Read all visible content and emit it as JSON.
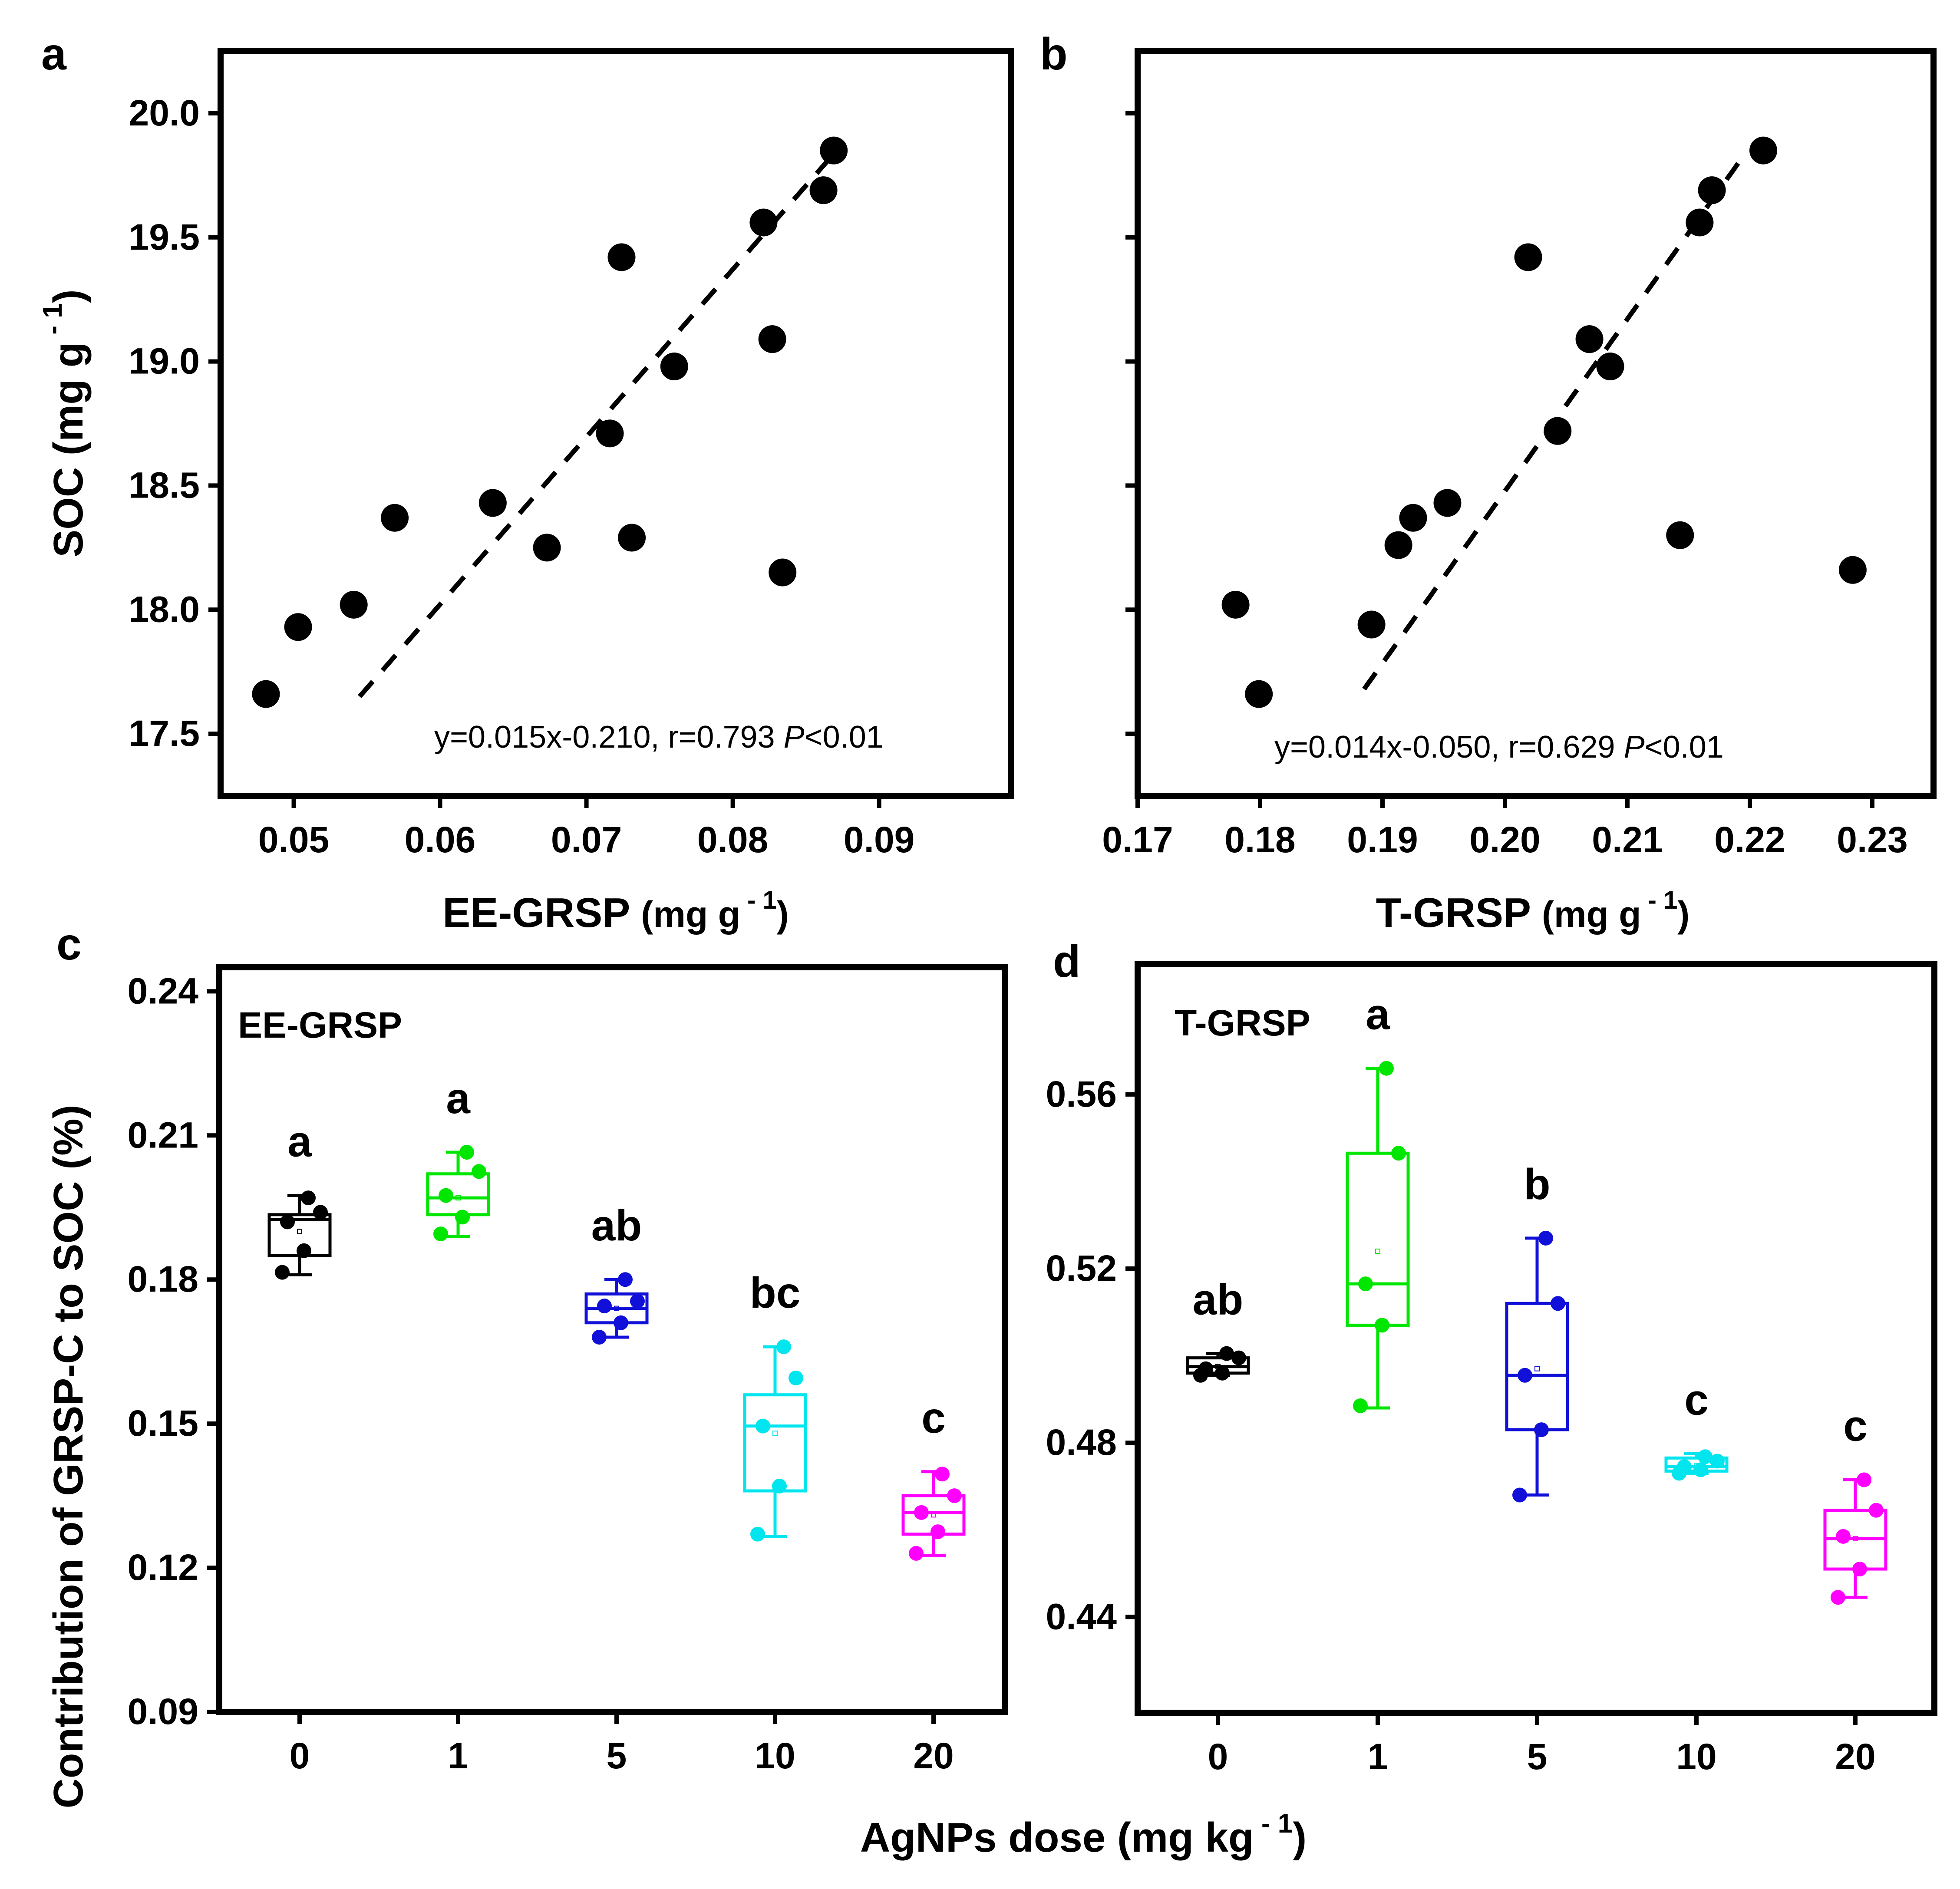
{
  "chart_data": [
    {
      "panel": "a",
      "type": "scatter",
      "xlabel": "EE-GRSP",
      "xlabel_unit": "(mg g",
      "xlabel_sup": " - 1",
      "xlabel_close": ")",
      "ylabel": "SOC (mg g",
      "ylabel_sup": " - 1",
      "ylabel_close": ")",
      "xlim": [
        0.045,
        0.099
      ],
      "ylim": [
        17.25,
        20.25
      ],
      "xticks": [
        0.05,
        0.06,
        0.07,
        0.08,
        0.09
      ],
      "xtick_labels": [
        "0.05",
        "0.06",
        "0.07",
        "0.08",
        "0.09"
      ],
      "yticks": [
        17.5,
        18.0,
        18.5,
        19.0,
        19.5,
        20.0
      ],
      "ytick_labels": [
        "17.5",
        "18.0",
        "18.5",
        "19.0",
        "19.5",
        "20.0"
      ],
      "points": [
        {
          "x": 0.0481,
          "y": 17.66
        },
        {
          "x": 0.0503,
          "y": 17.93
        },
        {
          "x": 0.0541,
          "y": 18.02
        },
        {
          "x": 0.0569,
          "y": 18.37
        },
        {
          "x": 0.0636,
          "y": 18.43
        },
        {
          "x": 0.0673,
          "y": 18.25
        },
        {
          "x": 0.0716,
          "y": 18.71
        },
        {
          "x": 0.0724,
          "y": 19.42
        },
        {
          "x": 0.0731,
          "y": 18.29
        },
        {
          "x": 0.076,
          "y": 18.98
        },
        {
          "x": 0.0821,
          "y": 19.56
        },
        {
          "x": 0.0827,
          "y": 19.09
        },
        {
          "x": 0.0834,
          "y": 18.15
        },
        {
          "x": 0.0862,
          "y": 19.69
        },
        {
          "x": 0.0869,
          "y": 19.85
        }
      ],
      "fit_line": {
        "x": [
          0.0545,
          0.0868
        ],
        "y": [
          17.65,
          19.83
        ]
      },
      "equation": "y=0.015x-0.210, r=0.793 ",
      "p_label": "P",
      "p_value": "<0.01"
    },
    {
      "panel": "b",
      "type": "scatter",
      "xlabel": "T-GRSP",
      "xlabel_unit": "(mg g",
      "xlabel_sup": " - 1",
      "xlabel_close": ")",
      "xlim": [
        0.17,
        0.235
      ],
      "ylim": [
        17.25,
        20.25
      ],
      "xticks": [
        0.17,
        0.18,
        0.19,
        0.2,
        0.21,
        0.22,
        0.23
      ],
      "xtick_labels": [
        "0.17",
        "0.18",
        "0.19",
        "0.20",
        "0.21",
        "0.22",
        "0.23"
      ],
      "yticks": [
        17.5,
        18.0,
        18.5,
        19.0,
        19.5,
        20.0
      ],
      "points": [
        {
          "x": 0.178,
          "y": 18.02
        },
        {
          "x": 0.1799,
          "y": 17.66
        },
        {
          "x": 0.1891,
          "y": 17.94
        },
        {
          "x": 0.1913,
          "y": 18.26
        },
        {
          "x": 0.1925,
          "y": 18.37
        },
        {
          "x": 0.1953,
          "y": 18.43
        },
        {
          "x": 0.2019,
          "y": 19.42
        },
        {
          "x": 0.2043,
          "y": 18.72
        },
        {
          "x": 0.2069,
          "y": 19.09
        },
        {
          "x": 0.2086,
          "y": 18.98
        },
        {
          "x": 0.2143,
          "y": 18.3
        },
        {
          "x": 0.2159,
          "y": 19.56
        },
        {
          "x": 0.2169,
          "y": 19.69
        },
        {
          "x": 0.2211,
          "y": 19.85
        },
        {
          "x": 0.2284,
          "y": 18.16
        }
      ],
      "fit_line": {
        "x": [
          0.1885,
          0.2195
        ],
        "y": [
          17.68,
          19.83
        ]
      },
      "equation": "y=0.014x-0.050, r=0.629 ",
      "p_label": "P",
      "p_value": "<0.01"
    },
    {
      "panel": "c",
      "type": "box",
      "inset_label": "EE-GRSP",
      "categories": [
        "0",
        "1",
        "5",
        "10",
        "20"
      ],
      "ylabel": "Contribution of GRSP-C to SOC (%)",
      "ylim": [
        0.09,
        0.245
      ],
      "yticks": [
        0.09,
        0.12,
        0.15,
        0.18,
        0.21,
        0.24
      ],
      "ytick_labels": [
        "0.09",
        "0.12",
        "0.15",
        "0.18",
        "0.21",
        "0.24"
      ],
      "boxes": [
        {
          "category": "0",
          "color": "#000000",
          "whisker_low": 0.181,
          "q1": 0.185,
          "median": 0.1925,
          "q3": 0.1935,
          "whisker_high": 0.1975,
          "mean": 0.19,
          "points": [
            0.197,
            0.194,
            0.192,
            0.186,
            0.1815
          ],
          "letter": "a"
        },
        {
          "category": "1",
          "color": "#00e600",
          "whisker_low": 0.189,
          "q1": 0.1935,
          "median": 0.197,
          "q3": 0.202,
          "whisker_high": 0.2065,
          "mean": 0.197,
          "points": [
            0.2065,
            0.2025,
            0.1975,
            0.193,
            0.1895
          ],
          "letter": "a"
        },
        {
          "category": "5",
          "color": "#1010d8",
          "whisker_low": 0.168,
          "q1": 0.171,
          "median": 0.174,
          "q3": 0.177,
          "whisker_high": 0.18,
          "mean": 0.174,
          "points": [
            0.18,
            0.1755,
            0.1745,
            0.171,
            0.168
          ],
          "letter": "ab"
        },
        {
          "category": "10",
          "color": "#00e5ee",
          "whisker_low": 0.1265,
          "q1": 0.136,
          "median": 0.1495,
          "q3": 0.156,
          "whisker_high": 0.166,
          "mean": 0.148,
          "points": [
            0.166,
            0.1595,
            0.1495,
            0.137,
            0.127
          ],
          "letter": "bc"
        },
        {
          "category": "20",
          "color": "#ff00ff",
          "whisker_low": 0.1225,
          "q1": 0.127,
          "median": 0.1315,
          "q3": 0.135,
          "whisker_high": 0.14,
          "mean": 0.131,
          "points": [
            0.1395,
            0.135,
            0.1315,
            0.1275,
            0.123
          ],
          "letter": "c"
        }
      ]
    },
    {
      "panel": "d",
      "type": "box",
      "inset_label": "T-GRSP",
      "categories": [
        "0",
        "1",
        "5",
        "10",
        "20"
      ],
      "xlabel": "AgNPs dose (mg kg",
      "xlabel_sup": " - 1",
      "xlabel_close": ")",
      "ylim": [
        0.418,
        0.59
      ],
      "yticks": [
        0.44,
        0.48,
        0.52,
        0.56
      ],
      "ytick_labels": [
        "0.44",
        "0.48",
        "0.52",
        "0.56"
      ],
      "boxes": [
        {
          "category": "0",
          "color": "#000000",
          "whisker_low": 0.4955,
          "q1": 0.496,
          "median": 0.4975,
          "q3": 0.4995,
          "whisker_high": 0.5005,
          "mean": 0.4975,
          "points": [
            0.5005,
            0.4995,
            0.497,
            0.496,
            0.4955
          ],
          "letter": "ab"
        },
        {
          "category": "1",
          "color": "#00e600",
          "whisker_low": 0.488,
          "q1": 0.507,
          "median": 0.5165,
          "q3": 0.5465,
          "whisker_high": 0.566,
          "mean": 0.524,
          "points": [
            0.566,
            0.5465,
            0.5165,
            0.507,
            0.4885
          ],
          "letter": "a"
        },
        {
          "category": "5",
          "color": "#1010d8",
          "whisker_low": 0.468,
          "q1": 0.483,
          "median": 0.4955,
          "q3": 0.512,
          "whisker_high": 0.527,
          "mean": 0.497,
          "points": [
            0.527,
            0.512,
            0.4955,
            0.483,
            0.468
          ],
          "letter": "b"
        },
        {
          "category": "10",
          "color": "#00e5ee",
          "whisker_low": 0.473,
          "q1": 0.4735,
          "median": 0.4745,
          "q3": 0.4765,
          "whisker_high": 0.4775,
          "mean": 0.4748,
          "points": [
            0.4768,
            0.4758,
            0.4745,
            0.4738,
            0.473
          ],
          "letter": "c"
        },
        {
          "category": "20",
          "color": "#ff00ff",
          "whisker_low": 0.4445,
          "q1": 0.451,
          "median": 0.458,
          "q3": 0.4645,
          "whisker_high": 0.4715,
          "mean": 0.458,
          "points": [
            0.4715,
            0.4645,
            0.4585,
            0.451,
            0.4445
          ],
          "letter": "c"
        }
      ]
    }
  ]
}
